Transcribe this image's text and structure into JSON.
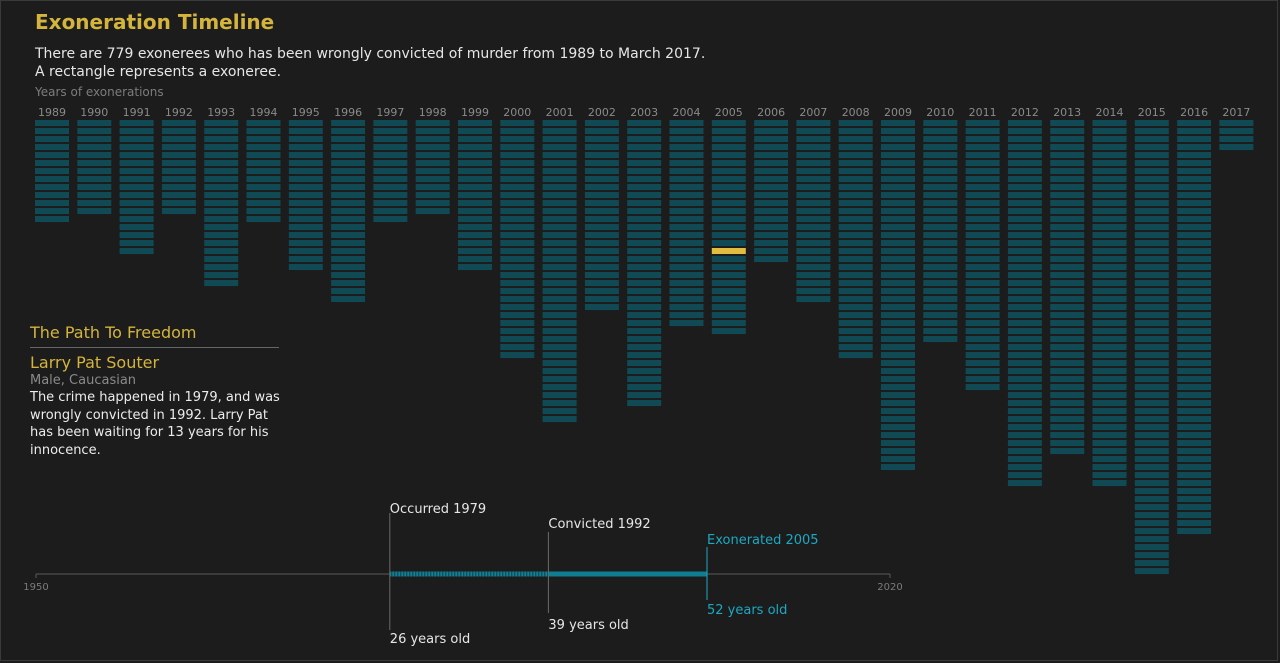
{
  "title": "Exoneration Timeline",
  "subtitle": [
    "There are 779 exonerees who has been wrongly convicted of murder from 1989 to March 2017.",
    "A rectangle represents a exoneree."
  ],
  "years_label": "Years of exonerations",
  "colors": {
    "background": "#1c1c1c",
    "accent": "#d4b43c",
    "bar": "#0f4a55",
    "bar_separator": "#1c1c1c",
    "highlight": "#e0bd3f",
    "exonerated": "#1ba9c3",
    "axis": "#5a5a5a",
    "muted_text": "#8a8a8a",
    "text": "#e6e6e6"
  },
  "chart_data": [
    {
      "type": "bar",
      "categories": [
        "1989",
        "1990",
        "1991",
        "1992",
        "1993",
        "1994",
        "1995",
        "1996",
        "1997",
        "1998",
        "1999",
        "2000",
        "2001",
        "2002",
        "2003",
        "2004",
        "2005",
        "2006",
        "2007",
        "2008",
        "2009",
        "2010",
        "2011",
        "2012",
        "2013",
        "2014",
        "2015",
        "2016",
        "2017"
      ],
      "values": [
        13,
        12,
        17,
        12,
        21,
        13,
        19,
        23,
        13,
        12,
        19,
        30,
        38,
        24,
        36,
        26,
        27,
        18,
        23,
        30,
        44,
        28,
        34,
        46,
        42,
        46,
        57,
        52,
        4
      ],
      "highlight": {
        "year": "2005",
        "index": 16
      },
      "xlabel": "Years of exonerations"
    },
    {
      "type": "line",
      "x_axis": {
        "min": 1950,
        "max": 2020,
        "tick_labels": [
          "1950",
          "2020"
        ]
      },
      "events": [
        {
          "label": "Occurred 1979",
          "year": 1979,
          "age_label": "26 years old"
        },
        {
          "label": "Convicted 1992",
          "year": 1992,
          "age_label": "39 years old"
        },
        {
          "label": "Exonerated 2005",
          "year": 2005,
          "age_label": "52 years old"
        }
      ]
    }
  ],
  "panel": {
    "heading": "The Path To Freedom",
    "name": "Larry Pat Souter",
    "demographics": "Male, Caucasian",
    "story": "The crime happened in 1979, and was wrongly convicted in 1992. Larry Pat has been waiting for 13 years for his innocence."
  }
}
